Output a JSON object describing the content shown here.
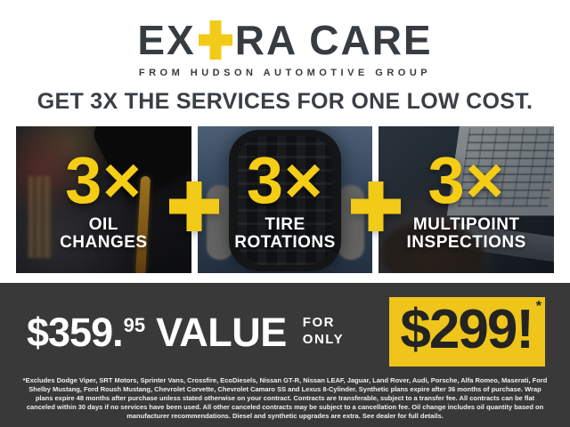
{
  "logo": {
    "part1": "EX",
    "plus": "+",
    "part2": "RA CARE",
    "subtitle": "FROM HUDSON AUTOMOTIVE GROUP"
  },
  "headline": "GET 3X THE SERVICES FOR ONE LOW COST.",
  "plus_separator": "+",
  "services": [
    {
      "multiplier": "3×",
      "line1": "OIL",
      "line2": "CHANGES",
      "photo": "oil-pour-photo"
    },
    {
      "multiplier": "3×",
      "line1": "TIRE",
      "line2": "ROTATIONS",
      "photo": "tire-hold-photo"
    },
    {
      "multiplier": "3×",
      "line1": "MULTIPOINT",
      "line2": "INSPECTIONS",
      "photo": "laptop-inspection-photo"
    }
  ],
  "offer": {
    "value_main": "$359",
    "value_dot": ".",
    "value_cents": "95",
    "value_word": "VALUE",
    "for_word": "FOR",
    "only_word": "ONLY",
    "sale_price": "$299!",
    "asterisk": "*"
  },
  "disclaimer": "*Excludes Dodge Viper, SRT Motors, Sprinter Vans, Crossfire, EcoDiesels, Nissan GT-R, Nissan LEAF, Jaguar, Land Rover, Audi, Porsche, Alfa Romeo, Maserati, Ford Shelby Mustang, Ford Roush Mustang, Chevrolet Corvette, Chevrolet Camaro SS and Lexus 8-Cylinder. Synthetic plans expire after 36 months of purchase. Wrap plans expire 48 months after purchase unless stated otherwise on your contract. Contracts are transferable, subject to a transfer fee. All contracts can be flat canceled within 30 days if no services have been used. All other canceled contracts may be subject to a cancellation fee. Oil change includes oil quantity based on manufacturer recommendations. Diesel and synthetic upgrades are extra. See dealer for full details.",
  "colors": {
    "yellow": "#F2CA18",
    "sale_box_yellow": "#EFC51B",
    "charcoal_text": "#373C41",
    "dark_bar": "#393939",
    "white": "#FFFFFF",
    "price_text": "#232323"
  }
}
